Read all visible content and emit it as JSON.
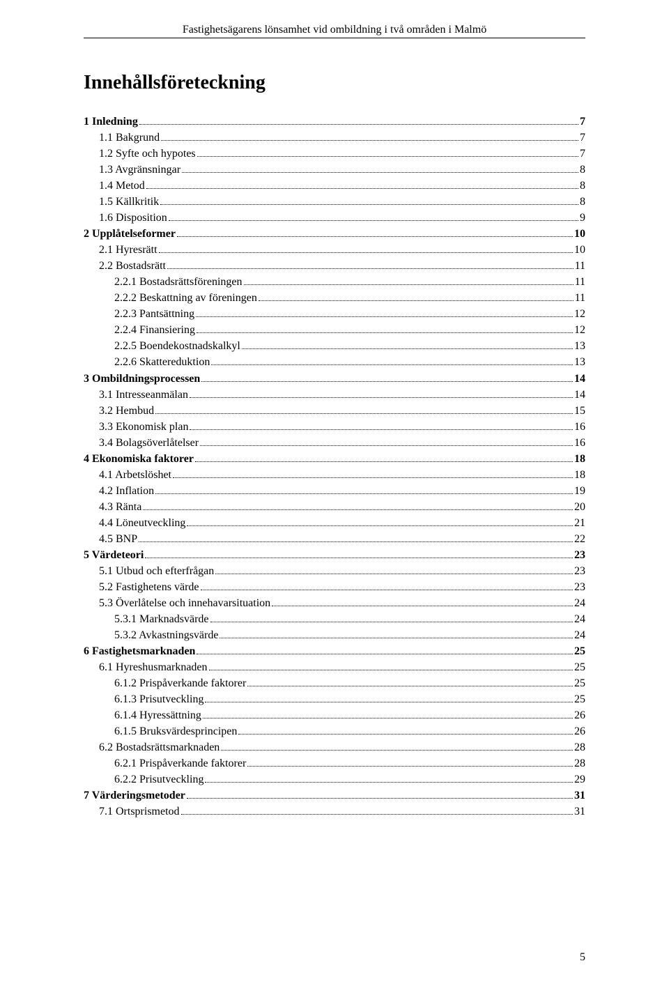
{
  "header": "Fastighetsägarens lönsamhet vid ombildning i två områden i Malmö",
  "toc_title": "Innehållsföreteckning",
  "page_number": "5",
  "entries": [
    {
      "label": "1 Inledning",
      "page": "7",
      "bold": true,
      "indent": 0
    },
    {
      "label": "1.1 Bakgrund",
      "page": "7",
      "bold": false,
      "indent": 1
    },
    {
      "label": "1.2 Syfte och hypotes",
      "page": "7",
      "bold": false,
      "indent": 1
    },
    {
      "label": "1.3 Avgränsningar",
      "page": "8",
      "bold": false,
      "indent": 1
    },
    {
      "label": "1.4 Metod",
      "page": "8",
      "bold": false,
      "indent": 1
    },
    {
      "label": "1.5 Källkritik",
      "page": "8",
      "bold": false,
      "indent": 1
    },
    {
      "label": "1.6 Disposition",
      "page": "9",
      "bold": false,
      "indent": 1
    },
    {
      "label": "2 Upplåtelseformer",
      "page": "10",
      "bold": true,
      "indent": 0
    },
    {
      "label": "2.1 Hyresrätt",
      "page": "10",
      "bold": false,
      "indent": 1
    },
    {
      "label": "2.2 Bostadsrätt",
      "page": "11",
      "bold": false,
      "indent": 1
    },
    {
      "label": "2.2.1 Bostadsrättsföreningen",
      "page": "11",
      "bold": false,
      "indent": 2
    },
    {
      "label": "2.2.2 Beskattning av föreningen",
      "page": "11",
      "bold": false,
      "indent": 2
    },
    {
      "label": "2.2.3 Pantsättning",
      "page": "12",
      "bold": false,
      "indent": 2
    },
    {
      "label": "2.2.4 Finansiering",
      "page": "12",
      "bold": false,
      "indent": 2
    },
    {
      "label": "2.2.5 Boendekostnadskalkyl",
      "page": "13",
      "bold": false,
      "indent": 2
    },
    {
      "label": "2.2.6 Skattereduktion",
      "page": "13",
      "bold": false,
      "indent": 2
    },
    {
      "label": "3 Ombildningsprocessen",
      "page": "14",
      "bold": true,
      "indent": 0
    },
    {
      "label": "3.1 Intresseanmälan",
      "page": "14",
      "bold": false,
      "indent": 1
    },
    {
      "label": "3.2 Hembud",
      "page": "15",
      "bold": false,
      "indent": 1
    },
    {
      "label": "3.3 Ekonomisk plan",
      "page": "16",
      "bold": false,
      "indent": 1
    },
    {
      "label": "3.4 Bolagsöverlåtelser",
      "page": "16",
      "bold": false,
      "indent": 1
    },
    {
      "label": "4 Ekonomiska faktorer",
      "page": "18",
      "bold": true,
      "indent": 0
    },
    {
      "label": "4.1 Arbetslöshet",
      "page": "18",
      "bold": false,
      "indent": 1
    },
    {
      "label": "4.2 Inflation",
      "page": "19",
      "bold": false,
      "indent": 1
    },
    {
      "label": "4.3 Ränta",
      "page": "20",
      "bold": false,
      "indent": 1
    },
    {
      "label": "4.4 Löneutveckling",
      "page": "21",
      "bold": false,
      "indent": 1
    },
    {
      "label": "4.5 BNP",
      "page": "22",
      "bold": false,
      "indent": 1
    },
    {
      "label": "5 Värdeteori",
      "page": "23",
      "bold": true,
      "indent": 0
    },
    {
      "label": "5.1 Utbud och efterfrågan",
      "page": "23",
      "bold": false,
      "indent": 1
    },
    {
      "label": "5.2 Fastighetens värde",
      "page": "23",
      "bold": false,
      "indent": 1
    },
    {
      "label": "5.3 Överlåtelse och innehavarsituation",
      "page": "24",
      "bold": false,
      "indent": 1
    },
    {
      "label": "5.3.1 Marknadsvärde",
      "page": "24",
      "bold": false,
      "indent": 2
    },
    {
      "label": "5.3.2 Avkastningsvärde",
      "page": "24",
      "bold": false,
      "indent": 2
    },
    {
      "label": "6 Fastighetsmarknaden",
      "page": "25",
      "bold": true,
      "indent": 0
    },
    {
      "label": "6.1 Hyreshusmarknaden",
      "page": "25",
      "bold": false,
      "indent": 1
    },
    {
      "label": "6.1.2 Prispåverkande faktorer",
      "page": "25",
      "bold": false,
      "indent": 2
    },
    {
      "label": "6.1.3 Prisutveckling",
      "page": "25",
      "bold": false,
      "indent": 2
    },
    {
      "label": "6.1.4 Hyressättning",
      "page": "26",
      "bold": false,
      "indent": 2
    },
    {
      "label": "6.1.5 Bruksvärdesprincipen",
      "page": "26",
      "bold": false,
      "indent": 2
    },
    {
      "label": "6.2  Bostadsrättsmarknaden",
      "page": "28",
      "bold": false,
      "indent": 1
    },
    {
      "label": "6.2.1 Prispåverkande faktorer",
      "page": "28",
      "bold": false,
      "indent": 2
    },
    {
      "label": "6.2.2 Prisutveckling",
      "page": "29",
      "bold": false,
      "indent": 2
    },
    {
      "label": "7 Värderingsmetoder",
      "page": "31",
      "bold": true,
      "indent": 0
    },
    {
      "label": "7.1 Ortsprismetod",
      "page": "31",
      "bold": false,
      "indent": 1
    }
  ]
}
